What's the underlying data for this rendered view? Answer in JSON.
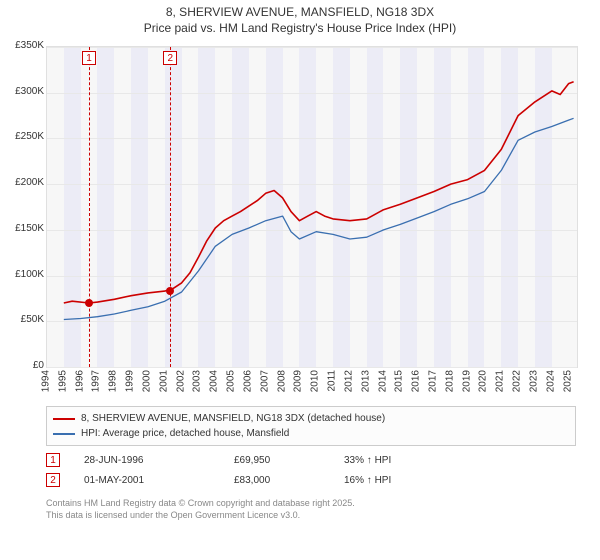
{
  "title_line1": "8, SHERVIEW AVENUE, MANSFIELD, NG18 3DX",
  "title_line2": "Price paid vs. HM Land Registry's House Price Index (HPI)",
  "chart": {
    "type": "line",
    "background_color": "#f7f7f7",
    "grid_color": "#e8e8e8",
    "band_color": "#ececf6",
    "x_start": 1994,
    "x_end": 2025.5,
    "xticks": [
      1994,
      1995,
      1996,
      1997,
      1998,
      1999,
      2000,
      2001,
      2002,
      2003,
      2004,
      2005,
      2006,
      2007,
      2008,
      2009,
      2010,
      2011,
      2012,
      2013,
      2014,
      2015,
      2016,
      2017,
      2018,
      2019,
      2020,
      2021,
      2022,
      2023,
      2024,
      2025
    ],
    "ylim": [
      0,
      350000
    ],
    "ytick_step": 50000,
    "ytick_labels": [
      "£0",
      "£50K",
      "£100K",
      "£150K",
      "£200K",
      "£250K",
      "£300K",
      "£350K"
    ],
    "tick_fontsize": 10,
    "series": [
      {
        "name": "price_paid",
        "label": "8, SHERVIEW AVENUE, MANSFIELD, NG18 3DX (detached house)",
        "color": "#cc0000",
        "line_width": 1.6,
        "x": [
          1995,
          1995.5,
          1996.5,
          1997,
          1998,
          1999,
          2000,
          2001,
          2001.5,
          2002,
          2002.5,
          2003,
          2003.5,
          2004,
          2004.5,
          2005,
          2005.5,
          2006,
          2006.5,
          2007,
          2007.5,
          2008,
          2008.5,
          2009,
          2009.5,
          2010,
          2010.5,
          2011,
          2012,
          2013,
          2014,
          2015,
          2016,
          2017,
          2018,
          2019,
          2020,
          2021,
          2022,
          2023,
          2024,
          2024.5,
          2025,
          2025.3
        ],
        "y": [
          70000,
          72000,
          69950,
          71000,
          74000,
          78000,
          81000,
          83000,
          86000,
          92000,
          103000,
          120000,
          138000,
          152000,
          160000,
          165000,
          170000,
          176000,
          182000,
          190000,
          193000,
          185000,
          170000,
          160000,
          165000,
          170000,
          165000,
          162000,
          160000,
          162000,
          172000,
          178000,
          185000,
          192000,
          200000,
          205000,
          215000,
          238000,
          275000,
          290000,
          302000,
          298000,
          310000,
          312000
        ]
      },
      {
        "name": "hpi",
        "label": "HPI: Average price, detached house, Mansfield",
        "color": "#3a6fb0",
        "line_width": 1.3,
        "x": [
          1995,
          1996,
          1997,
          1998,
          1999,
          2000,
          2001,
          2002,
          2003,
          2004,
          2005,
          2006,
          2007,
          2008,
          2008.5,
          2009,
          2010,
          2011,
          2012,
          2013,
          2014,
          2015,
          2016,
          2017,
          2018,
          2019,
          2020,
          2021,
          2022,
          2023,
          2024,
          2025,
          2025.3
        ],
        "y": [
          52000,
          53000,
          55000,
          58000,
          62000,
          66000,
          72000,
          82000,
          105000,
          132000,
          145000,
          152000,
          160000,
          165000,
          148000,
          140000,
          148000,
          145000,
          140000,
          142000,
          150000,
          156000,
          163000,
          170000,
          178000,
          184000,
          192000,
          215000,
          248000,
          257000,
          263000,
          270000,
          272000
        ]
      }
    ],
    "sale_markers": {
      "color": "#cc0000",
      "marker_size": 8,
      "items": [
        {
          "idx": "1",
          "x": 1996.5,
          "y": 69950
        },
        {
          "idx": "2",
          "x": 2001.33,
          "y": 83000
        }
      ]
    }
  },
  "legend": {
    "border_color": "#cccccc",
    "fontsize": 10
  },
  "sales": [
    {
      "idx": "1",
      "date": "28-JUN-1996",
      "price": "£69,950",
      "delta_pct": "33%",
      "delta_dir": "up",
      "delta_label": "HPI"
    },
    {
      "idx": "2",
      "date": "01-MAY-2001",
      "price": "£83,000",
      "delta_pct": "16%",
      "delta_dir": "up",
      "delta_label": "HPI"
    }
  ],
  "footnote_line1": "Contains HM Land Registry data © Crown copyright and database right 2025.",
  "footnote_line2": "This data is licensed under the Open Government Licence v3.0."
}
